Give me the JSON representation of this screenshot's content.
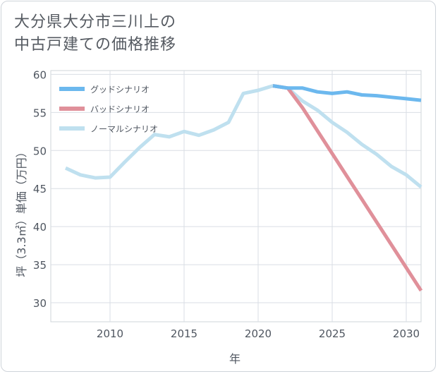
{
  "title_line1": "大分県大分市三川上の",
  "title_line2": "中古戸建ての価格推移",
  "chart_data": {
    "type": "line",
    "xlabel": "年",
    "ylabel": "坪（3.3㎡）単価（万円）",
    "xlim": [
      2006,
      2031
    ],
    "ylim": [
      27.5,
      60.5
    ],
    "xticks": [
      2010,
      2015,
      2020,
      2025,
      2030
    ],
    "yticks": [
      30,
      35,
      40,
      45,
      50,
      55,
      60
    ],
    "grid": true,
    "legend_position": "top-left",
    "series": [
      {
        "name": "グッドシナリオ",
        "color": "#6cb8ee",
        "x": [
          2021,
          2022,
          2023,
          2024,
          2025,
          2026,
          2027,
          2028,
          2029,
          2030,
          2031
        ],
        "y": [
          58.5,
          58.2,
          58.2,
          57.7,
          57.5,
          57.7,
          57.3,
          57.2,
          57.0,
          56.8,
          56.6
        ]
      },
      {
        "name": "バッドシナリオ",
        "color": "#e0909a",
        "x": [
          2021,
          2022,
          2023,
          2024,
          2025,
          2026,
          2027,
          2028,
          2029,
          2030,
          2031
        ],
        "y": [
          58.5,
          58.2,
          55.6,
          52.6,
          49.6,
          46.6,
          43.6,
          40.6,
          37.6,
          34.6,
          31.6
        ]
      },
      {
        "name": "ノーマルシナリオ",
        "color": "#bfe0ef",
        "x": [
          2007,
          2008,
          2009,
          2010,
          2011,
          2012,
          2013,
          2014,
          2015,
          2016,
          2017,
          2018,
          2019,
          2020,
          2021,
          2022,
          2023,
          2024,
          2025,
          2026,
          2027,
          2028,
          2029,
          2030,
          2031
        ],
        "y": [
          47.7,
          46.8,
          46.4,
          46.5,
          48.5,
          50.4,
          52.1,
          51.8,
          52.5,
          52.0,
          52.7,
          53.7,
          57.5,
          57.9,
          58.5,
          58.2,
          56.5,
          55.3,
          53.7,
          52.4,
          50.8,
          49.5,
          47.9,
          46.8,
          45.2
        ]
      }
    ]
  }
}
